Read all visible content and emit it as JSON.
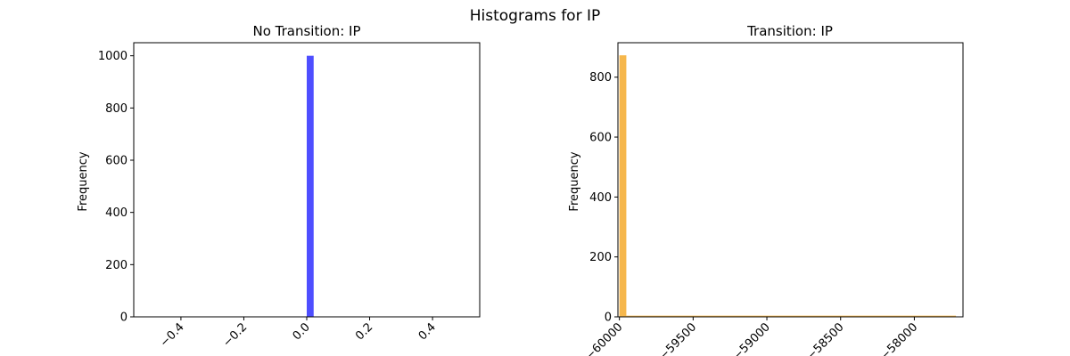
{
  "figure": {
    "title": "Histograms for IP"
  },
  "chart_data": [
    {
      "type": "bar",
      "title": "No Transition: IP",
      "xlabel": "",
      "ylabel": "Frequency",
      "xlim": [
        -0.55,
        0.55
      ],
      "ylim": [
        0,
        1050
      ],
      "xticks": [
        -0.4,
        -0.2,
        0.0,
        0.2,
        0.4
      ],
      "xtick_labels": [
        "−0.4",
        "−0.2",
        "0.0",
        "0.2",
        "0.4"
      ],
      "yticks": [
        0,
        200,
        400,
        600,
        800,
        1000
      ],
      "ytick_labels": [
        "0",
        "200",
        "400",
        "600",
        "800",
        "1000"
      ],
      "color": "#4444ff",
      "bins": [
        {
          "x0": 0.0,
          "x1": 0.022,
          "value": 1000
        }
      ],
      "grid": false,
      "legend": "none"
    },
    {
      "type": "bar",
      "title": "Transition: IP",
      "xlabel": "",
      "ylabel": "Frequency",
      "xlim": [
        -60010,
        -57670
      ],
      "ylim": [
        0,
        915
      ],
      "xticks": [
        -60000,
        -59500,
        -59000,
        -58500,
        -58000
      ],
      "xtick_labels": [
        "−60000",
        "−59500",
        "−59000",
        "−58500",
        "−58000"
      ],
      "yticks": [
        0,
        200,
        400,
        600,
        800
      ],
      "ytick_labels": [
        "0",
        "200",
        "400",
        "600",
        "800"
      ],
      "color": "#f5b342",
      "bins": [
        {
          "x0": -60000,
          "x1": -59953,
          "value": 873
        },
        {
          "x0": -59953,
          "x1": -57718,
          "value": 4
        }
      ],
      "grid": false,
      "legend": "none"
    }
  ]
}
